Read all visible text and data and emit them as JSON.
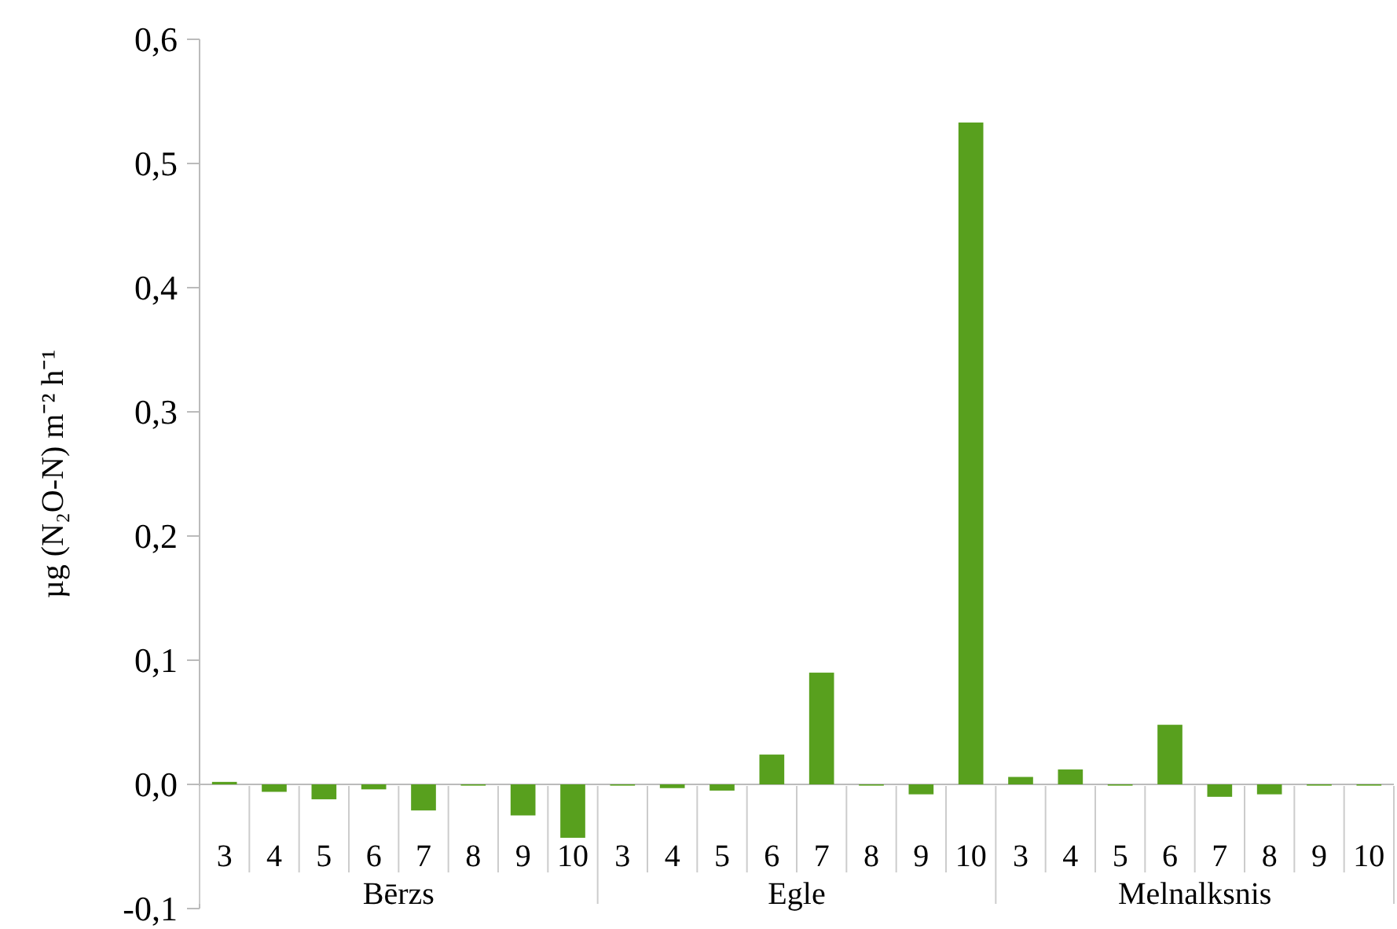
{
  "chart_data": {
    "type": "bar",
    "ylabel": "µg (N₂O-N) m⁻² h⁻¹",
    "categories": [
      "3",
      "4",
      "5",
      "6",
      "7",
      "8",
      "9",
      "10",
      "3",
      "4",
      "5",
      "6",
      "7",
      "8",
      "9",
      "10",
      "3",
      "4",
      "5",
      "6",
      "7",
      "8",
      "9",
      "10"
    ],
    "annotations": [
      "Bērzs",
      "Egle",
      "Melnalksnis"
    ],
    "values": [
      0.002,
      -0.006,
      -0.012,
      -0.004,
      -0.021,
      -0.001,
      -0.025,
      -0.043,
      -0.001,
      -0.003,
      -0.005,
      0.024,
      0.09,
      -0.001,
      -0.008,
      0.533,
      0.006,
      0.012,
      -0.001,
      0.048,
      -0.01,
      -0.008,
      -0.001,
      -0.001
    ],
    "color": "#58a01e",
    "ylim": [
      -0.1,
      0.6
    ],
    "yticks": [
      {
        "value": -0.1,
        "label": "-0,1"
      },
      {
        "value": 0,
        "label": "0,0"
      },
      {
        "value": 0.1,
        "label": "0,1"
      },
      {
        "value": 0.2,
        "label": "0,2"
      },
      {
        "value": 0.3,
        "label": "0,3"
      },
      {
        "value": 0.4,
        "label": "0,4"
      },
      {
        "value": 0.5,
        "label": "0,5"
      },
      {
        "value": 0.6,
        "label": "0,6"
      }
    ],
    "grid": false
  }
}
